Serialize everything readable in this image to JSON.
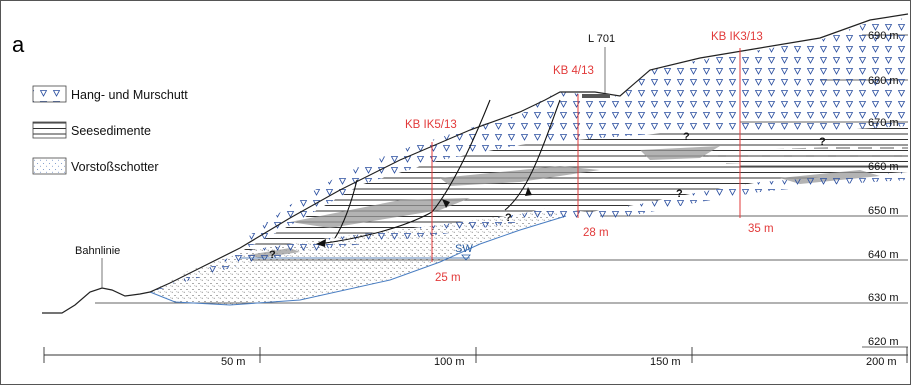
{
  "panel_label": "a",
  "legend": {
    "hang": "Hang- und Murschutt",
    "see": "Seesedimente",
    "vorstoss": "Vorstoßschotter"
  },
  "elevations": [
    "690 m",
    "680 m",
    "670 m",
    "660 m",
    "650 m",
    "640 m",
    "630 m",
    "620 m"
  ],
  "distances": [
    "50 m",
    "100 m",
    "150 m",
    "200 m"
  ],
  "boreholes": {
    "kb_ik5": {
      "name": "KB IK5/13",
      "depth": "25 m"
    },
    "kb_4": {
      "name": "KB 4/13",
      "depth": "28 m"
    },
    "kb_ik3": {
      "name": "KB IK3/13",
      "depth": "35 m"
    }
  },
  "road": "L 701",
  "railway": "Bahnlinie",
  "groundwater": "SW",
  "unknown_mark": "?",
  "colors": {
    "borehole": "#e23a3a",
    "groundwater": "#2a5fa5",
    "triangles": "#2b4fa0"
  }
}
